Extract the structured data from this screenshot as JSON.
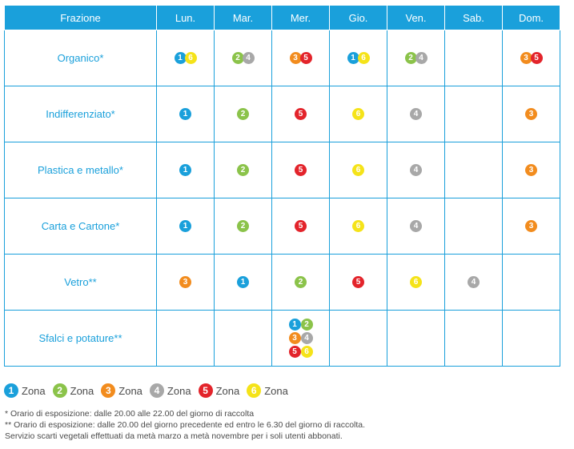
{
  "zone_colors": {
    "1": "#1aa0db",
    "2": "#8bc34a",
    "3": "#f28c1e",
    "4": "#a8a8a8",
    "5": "#e3242b",
    "6": "#f5e319"
  },
  "header": {
    "fraction": "Frazione",
    "days": [
      "Lun.",
      "Mar.",
      "Mer.",
      "Gio.",
      "Ven.",
      "Sab.",
      "Dom."
    ]
  },
  "rows": [
    {
      "label": "Organico*",
      "days": [
        [
          "1",
          "6"
        ],
        [
          "2",
          "4"
        ],
        [
          "3",
          "5"
        ],
        [
          "1",
          "6"
        ],
        [
          "2",
          "4"
        ],
        [],
        [
          "3",
          "5"
        ]
      ]
    },
    {
      "label": "Indifferenziato*",
      "days": [
        [
          "1"
        ],
        [
          "2"
        ],
        [
          "5"
        ],
        [
          "6"
        ],
        [
          "4"
        ],
        [],
        [
          "3"
        ]
      ]
    },
    {
      "label": "Plastica e metallo*",
      "days": [
        [
          "1"
        ],
        [
          "2"
        ],
        [
          "5"
        ],
        [
          "6"
        ],
        [
          "4"
        ],
        [],
        [
          "3"
        ]
      ]
    },
    {
      "label": "Carta e Cartone*",
      "days": [
        [
          "1"
        ],
        [
          "2"
        ],
        [
          "5"
        ],
        [
          "6"
        ],
        [
          "4"
        ],
        [],
        [
          "3"
        ]
      ]
    },
    {
      "label": "Vetro**",
      "days": [
        [
          "3"
        ],
        [
          "1"
        ],
        [
          "2"
        ],
        [
          "5"
        ],
        [
          "6"
        ],
        [
          "4"
        ],
        []
      ]
    },
    {
      "label": "Sfalci e potature**",
      "days": [
        [],
        [],
        [
          "1",
          "2",
          "3",
          "4",
          "5",
          "6"
        ],
        [],
        [],
        [],
        []
      ]
    }
  ],
  "legend": {
    "zone_word": "Zona",
    "zones": [
      "1",
      "2",
      "3",
      "4",
      "5",
      "6"
    ]
  },
  "notes": [
    "* Orario di esposizione: dalle 20.00 alle 22.00 del giorno di raccolta",
    "** Orario di esposizione: dalle 20.00 del giorno precedente ed entro le 6.30 del giorno di raccolta.",
    "Servizio scarti vegetali effettuati da metà marzo a metà novembre per i soli utenti abbonati."
  ]
}
